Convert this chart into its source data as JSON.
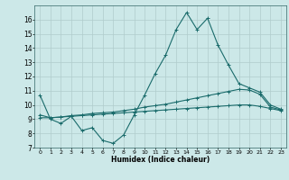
{
  "title": "",
  "xlabel": "Humidex (Indice chaleur)",
  "background_color": "#cce8e8",
  "grid_color": "#b0cccc",
  "line_color": "#1a6b6b",
  "xlim": [
    -0.5,
    23.5
  ],
  "ylim": [
    7,
    17
  ],
  "yticks": [
    7,
    8,
    9,
    10,
    11,
    12,
    13,
    14,
    15,
    16
  ],
  "xticks": [
    0,
    1,
    2,
    3,
    4,
    5,
    6,
    7,
    8,
    9,
    10,
    11,
    12,
    13,
    14,
    15,
    16,
    17,
    18,
    19,
    20,
    21,
    22,
    23
  ],
  "main_line_y": [
    10.7,
    9.0,
    8.7,
    9.2,
    8.2,
    8.4,
    7.5,
    7.3,
    7.9,
    9.3,
    10.7,
    12.2,
    13.5,
    15.3,
    16.5,
    15.3,
    16.1,
    14.2,
    12.8,
    11.5,
    11.2,
    10.9,
    10.0,
    9.7
  ],
  "line2_y": [
    9.3,
    9.1,
    9.15,
    9.25,
    9.3,
    9.4,
    9.45,
    9.5,
    9.6,
    9.7,
    9.85,
    9.95,
    10.05,
    10.2,
    10.35,
    10.5,
    10.65,
    10.8,
    10.95,
    11.1,
    11.05,
    10.75,
    9.85,
    9.65
  ],
  "line3_y": [
    9.1,
    9.1,
    9.15,
    9.2,
    9.25,
    9.3,
    9.35,
    9.4,
    9.45,
    9.5,
    9.55,
    9.6,
    9.65,
    9.7,
    9.75,
    9.8,
    9.85,
    9.9,
    9.95,
    10.0,
    10.0,
    9.9,
    9.75,
    9.6
  ]
}
